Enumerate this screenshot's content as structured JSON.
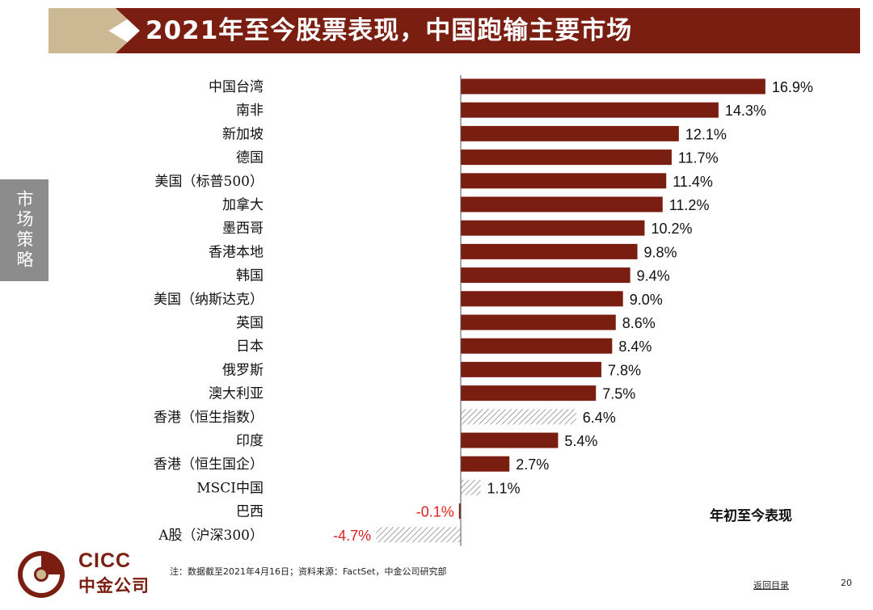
{
  "header": {
    "title": "2021年至今股票表现，中国跑输主要市场"
  },
  "sidebar": {
    "tab_label": "市场策略"
  },
  "colors": {
    "bar": "#7b1e12",
    "hatch": "#8a8a8a",
    "negative_label": "#e02020",
    "banner_tan": "#cdb894"
  },
  "chart_data": {
    "type": "bar",
    "orientation": "horizontal",
    "legend": "年初至今表现",
    "categories": [
      "中国台湾",
      "南非",
      "新加坡",
      "德国",
      "美国（标普500）",
      "加拿大",
      "墨西哥",
      "香港本地",
      "韩国",
      "美国（纳斯达克）",
      "英国",
      "日本",
      "俄罗斯",
      "澳大利亚",
      "香港（恒生指数）",
      "印度",
      "香港（恒生国企）",
      "MSCI中国",
      "巴西",
      "A股（沪深300）"
    ],
    "values": [
      16.9,
      14.3,
      12.1,
      11.7,
      11.4,
      11.2,
      10.2,
      9.8,
      9.4,
      9.0,
      8.6,
      8.4,
      7.8,
      7.5,
      6.4,
      5.4,
      2.7,
      1.1,
      -0.1,
      -4.7
    ],
    "value_labels": [
      "16.9%",
      "14.3%",
      "12.1%",
      "11.7%",
      "11.4%",
      "11.2%",
      "10.2%",
      "9.8%",
      "9.4%",
      "9.0%",
      "8.6%",
      "8.4%",
      "7.8%",
      "7.5%",
      "6.4%",
      "5.4%",
      "2.7%",
      "1.1%",
      "-0.1%",
      "-4.7%"
    ],
    "hatched": [
      false,
      false,
      false,
      false,
      false,
      false,
      false,
      false,
      false,
      false,
      false,
      false,
      false,
      false,
      true,
      false,
      false,
      true,
      false,
      true
    ],
    "xlim": [
      -4.7,
      16.9
    ]
  },
  "footer": {
    "logo_en": "CICC",
    "logo_cn": "中金公司",
    "note": "注：数据截至2021年4月16日；资料来源：FactSet，中金公司研究部",
    "back_link": "返回目录",
    "page_number": "20"
  }
}
